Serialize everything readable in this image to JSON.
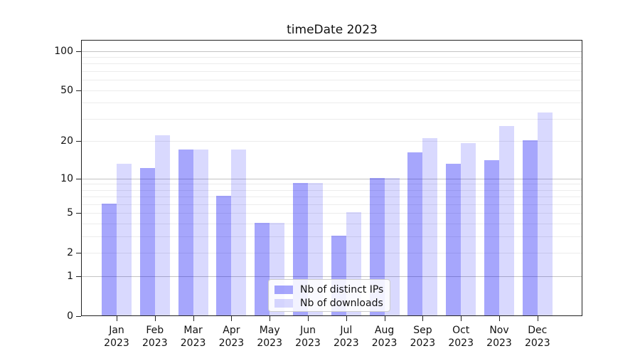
{
  "chart_data": {
    "type": "bar",
    "title": "timeDate 2023",
    "categories": [
      "Jan 2023",
      "Feb 2023",
      "Mar 2023",
      "Apr 2023",
      "May 2023",
      "Jun 2023",
      "Jul 2023",
      "Aug 2023",
      "Sep 2023",
      "Oct 2023",
      "Nov 2023",
      "Dec 2023"
    ],
    "series": [
      {
        "name": "Nb of distinct IPs",
        "color": "rgba(0,0,245,0.35)",
        "values": [
          6,
          12,
          17,
          7,
          4,
          9,
          3,
          10,
          16,
          13,
          14,
          20
        ]
      },
      {
        "name": "Nb of downloads",
        "color": "rgba(0,0,245,0.15)",
        "values": [
          13,
          22,
          17,
          17,
          4,
          9,
          5,
          10,
          21,
          19,
          26,
          33
        ]
      }
    ],
    "xlabel": "",
    "ylabel": "",
    "yscale": "log1p",
    "yticks": [
      0,
      1,
      2,
      5,
      10,
      20,
      50,
      100
    ],
    "ylim": [
      0,
      120
    ],
    "grid": true,
    "legend_position": "lower center"
  }
}
